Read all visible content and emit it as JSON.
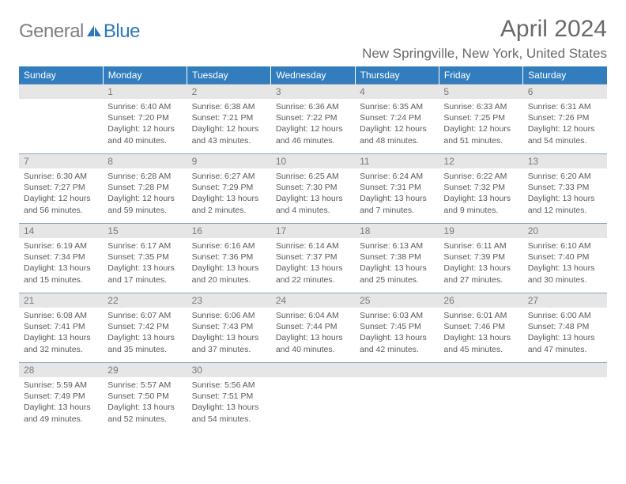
{
  "logo": {
    "general": "General",
    "blue": "Blue",
    "icon_color": "#2f77bb"
  },
  "header": {
    "title": "April 2024",
    "location": "New Springville, New York, United States"
  },
  "styling": {
    "header_bg": "#327dbd",
    "header_text": "#ffffff",
    "daynum_bg": "#e6e6e6",
    "row_border": "#8aa5bd",
    "text_color": "#5a5a5a",
    "title_color": "#6a6a6a",
    "logo_gray": "#808080",
    "logo_blue": "#2f77bb",
    "page_bg": "#ffffff",
    "font_family": "Arial",
    "title_fontsize": 30,
    "location_fontsize": 17,
    "dayheader_fontsize": 12,
    "info_fontsize": 10.5
  },
  "day_headers": [
    "Sunday",
    "Monday",
    "Tuesday",
    "Wednesday",
    "Thursday",
    "Friday",
    "Saturday"
  ],
  "weeks": [
    [
      null,
      {
        "n": "1",
        "sr": "Sunrise: 6:40 AM",
        "ss": "Sunset: 7:20 PM",
        "d1": "Daylight: 12 hours",
        "d2": "and 40 minutes."
      },
      {
        "n": "2",
        "sr": "Sunrise: 6:38 AM",
        "ss": "Sunset: 7:21 PM",
        "d1": "Daylight: 12 hours",
        "d2": "and 43 minutes."
      },
      {
        "n": "3",
        "sr": "Sunrise: 6:36 AM",
        "ss": "Sunset: 7:22 PM",
        "d1": "Daylight: 12 hours",
        "d2": "and 46 minutes."
      },
      {
        "n": "4",
        "sr": "Sunrise: 6:35 AM",
        "ss": "Sunset: 7:24 PM",
        "d1": "Daylight: 12 hours",
        "d2": "and 48 minutes."
      },
      {
        "n": "5",
        "sr": "Sunrise: 6:33 AM",
        "ss": "Sunset: 7:25 PM",
        "d1": "Daylight: 12 hours",
        "d2": "and 51 minutes."
      },
      {
        "n": "6",
        "sr": "Sunrise: 6:31 AM",
        "ss": "Sunset: 7:26 PM",
        "d1": "Daylight: 12 hours",
        "d2": "and 54 minutes."
      }
    ],
    [
      {
        "n": "7",
        "sr": "Sunrise: 6:30 AM",
        "ss": "Sunset: 7:27 PM",
        "d1": "Daylight: 12 hours",
        "d2": "and 56 minutes."
      },
      {
        "n": "8",
        "sr": "Sunrise: 6:28 AM",
        "ss": "Sunset: 7:28 PM",
        "d1": "Daylight: 12 hours",
        "d2": "and 59 minutes."
      },
      {
        "n": "9",
        "sr": "Sunrise: 6:27 AM",
        "ss": "Sunset: 7:29 PM",
        "d1": "Daylight: 13 hours",
        "d2": "and 2 minutes."
      },
      {
        "n": "10",
        "sr": "Sunrise: 6:25 AM",
        "ss": "Sunset: 7:30 PM",
        "d1": "Daylight: 13 hours",
        "d2": "and 4 minutes."
      },
      {
        "n": "11",
        "sr": "Sunrise: 6:24 AM",
        "ss": "Sunset: 7:31 PM",
        "d1": "Daylight: 13 hours",
        "d2": "and 7 minutes."
      },
      {
        "n": "12",
        "sr": "Sunrise: 6:22 AM",
        "ss": "Sunset: 7:32 PM",
        "d1": "Daylight: 13 hours",
        "d2": "and 9 minutes."
      },
      {
        "n": "13",
        "sr": "Sunrise: 6:20 AM",
        "ss": "Sunset: 7:33 PM",
        "d1": "Daylight: 13 hours",
        "d2": "and 12 minutes."
      }
    ],
    [
      {
        "n": "14",
        "sr": "Sunrise: 6:19 AM",
        "ss": "Sunset: 7:34 PM",
        "d1": "Daylight: 13 hours",
        "d2": "and 15 minutes."
      },
      {
        "n": "15",
        "sr": "Sunrise: 6:17 AM",
        "ss": "Sunset: 7:35 PM",
        "d1": "Daylight: 13 hours",
        "d2": "and 17 minutes."
      },
      {
        "n": "16",
        "sr": "Sunrise: 6:16 AM",
        "ss": "Sunset: 7:36 PM",
        "d1": "Daylight: 13 hours",
        "d2": "and 20 minutes."
      },
      {
        "n": "17",
        "sr": "Sunrise: 6:14 AM",
        "ss": "Sunset: 7:37 PM",
        "d1": "Daylight: 13 hours",
        "d2": "and 22 minutes."
      },
      {
        "n": "18",
        "sr": "Sunrise: 6:13 AM",
        "ss": "Sunset: 7:38 PM",
        "d1": "Daylight: 13 hours",
        "d2": "and 25 minutes."
      },
      {
        "n": "19",
        "sr": "Sunrise: 6:11 AM",
        "ss": "Sunset: 7:39 PM",
        "d1": "Daylight: 13 hours",
        "d2": "and 27 minutes."
      },
      {
        "n": "20",
        "sr": "Sunrise: 6:10 AM",
        "ss": "Sunset: 7:40 PM",
        "d1": "Daylight: 13 hours",
        "d2": "and 30 minutes."
      }
    ],
    [
      {
        "n": "21",
        "sr": "Sunrise: 6:08 AM",
        "ss": "Sunset: 7:41 PM",
        "d1": "Daylight: 13 hours",
        "d2": "and 32 minutes."
      },
      {
        "n": "22",
        "sr": "Sunrise: 6:07 AM",
        "ss": "Sunset: 7:42 PM",
        "d1": "Daylight: 13 hours",
        "d2": "and 35 minutes."
      },
      {
        "n": "23",
        "sr": "Sunrise: 6:06 AM",
        "ss": "Sunset: 7:43 PM",
        "d1": "Daylight: 13 hours",
        "d2": "and 37 minutes."
      },
      {
        "n": "24",
        "sr": "Sunrise: 6:04 AM",
        "ss": "Sunset: 7:44 PM",
        "d1": "Daylight: 13 hours",
        "d2": "and 40 minutes."
      },
      {
        "n": "25",
        "sr": "Sunrise: 6:03 AM",
        "ss": "Sunset: 7:45 PM",
        "d1": "Daylight: 13 hours",
        "d2": "and 42 minutes."
      },
      {
        "n": "26",
        "sr": "Sunrise: 6:01 AM",
        "ss": "Sunset: 7:46 PM",
        "d1": "Daylight: 13 hours",
        "d2": "and 45 minutes."
      },
      {
        "n": "27",
        "sr": "Sunrise: 6:00 AM",
        "ss": "Sunset: 7:48 PM",
        "d1": "Daylight: 13 hours",
        "d2": "and 47 minutes."
      }
    ],
    [
      {
        "n": "28",
        "sr": "Sunrise: 5:59 AM",
        "ss": "Sunset: 7:49 PM",
        "d1": "Daylight: 13 hours",
        "d2": "and 49 minutes."
      },
      {
        "n": "29",
        "sr": "Sunrise: 5:57 AM",
        "ss": "Sunset: 7:50 PM",
        "d1": "Daylight: 13 hours",
        "d2": "and 52 minutes."
      },
      {
        "n": "30",
        "sr": "Sunrise: 5:56 AM",
        "ss": "Sunset: 7:51 PM",
        "d1": "Daylight: 13 hours",
        "d2": "and 54 minutes."
      },
      null,
      null,
      null,
      null
    ]
  ]
}
